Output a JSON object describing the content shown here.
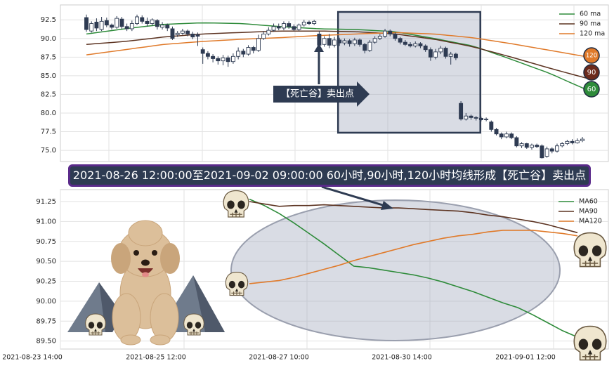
{
  "chart_data": [
    {
      "type": "candlestick",
      "panel": "top",
      "title": "",
      "ylim": [
        73.5,
        94.5
      ],
      "yticks": [
        "92.5",
        "90.0",
        "87.5",
        "85.0",
        "82.5",
        "80.0",
        "77.5",
        "75.0"
      ],
      "ytick_values": [
        92.5,
        90.0,
        87.5,
        85.0,
        82.5,
        80.0,
        77.5,
        75.0
      ],
      "grid": true,
      "legend_position": "top-right",
      "legend": [
        "60 ma",
        "90 ma",
        "120 ma"
      ],
      "colors": {
        "ma60": "#2e8b3a",
        "ma90": "#5c3321",
        "ma120": "#e07a2a",
        "candle": "#2e3b52",
        "highlight_box": "#2e3b52"
      },
      "candles": [
        {
          "o": 92.8,
          "c": 91.2,
          "h": 93.2,
          "l": 90.9
        },
        {
          "o": 91.0,
          "c": 92.0,
          "h": 92.3,
          "l": 90.8
        },
        {
          "o": 92.2,
          "c": 91.4,
          "h": 92.7,
          "l": 91.0
        },
        {
          "o": 91.2,
          "c": 92.3,
          "h": 92.9,
          "l": 91.0
        },
        {
          "o": 92.4,
          "c": 91.8,
          "h": 92.8,
          "l": 91.5
        },
        {
          "o": 91.8,
          "c": 91.5,
          "h": 92.0,
          "l": 91.2
        },
        {
          "o": 91.5,
          "c": 92.7,
          "h": 93.0,
          "l": 91.3
        },
        {
          "o": 92.6,
          "c": 91.6,
          "h": 92.9,
          "l": 91.3
        },
        {
          "o": 91.6,
          "c": 91.3,
          "h": 92.0,
          "l": 91.0
        },
        {
          "o": 91.3,
          "c": 92.0,
          "h": 92.4,
          "l": 91.0
        },
        {
          "o": 92.0,
          "c": 92.9,
          "h": 93.2,
          "l": 91.8
        },
        {
          "o": 92.8,
          "c": 92.3,
          "h": 93.1,
          "l": 92.0
        },
        {
          "o": 92.3,
          "c": 92.0,
          "h": 92.8,
          "l": 91.6
        },
        {
          "o": 92.0,
          "c": 92.5,
          "h": 92.7,
          "l": 91.7
        },
        {
          "o": 92.4,
          "c": 91.6,
          "h": 92.6,
          "l": 91.2
        },
        {
          "o": 91.5,
          "c": 91.8,
          "h": 92.2,
          "l": 91.2
        },
        {
          "o": 91.8,
          "c": 91.4,
          "h": 92.0,
          "l": 91.0
        },
        {
          "o": 91.3,
          "c": 90.0,
          "h": 91.6,
          "l": 89.8
        },
        {
          "o": 90.5,
          "c": 90.7,
          "h": 91.0,
          "l": 90.2
        },
        {
          "o": 90.7,
          "c": 91.0,
          "h": 91.3,
          "l": 90.5
        },
        {
          "o": 91.0,
          "c": 90.6,
          "h": 91.2,
          "l": 90.3
        },
        {
          "o": 90.6,
          "c": 90.2,
          "h": 90.9,
          "l": 89.9
        },
        {
          "o": 90.5,
          "c": 90.3,
          "h": 90.8,
          "l": 89.0
        },
        {
          "o": 88.5,
          "c": 88.0,
          "h": 88.8,
          "l": 86.6
        },
        {
          "o": 88.0,
          "c": 87.6,
          "h": 88.3,
          "l": 87.2
        },
        {
          "o": 87.6,
          "c": 87.3,
          "h": 87.9,
          "l": 86.8
        },
        {
          "o": 87.3,
          "c": 87.0,
          "h": 87.6,
          "l": 86.5
        },
        {
          "o": 87.0,
          "c": 87.4,
          "h": 87.8,
          "l": 86.4
        },
        {
          "o": 87.4,
          "c": 86.9,
          "h": 87.7,
          "l": 86.2
        },
        {
          "o": 86.9,
          "c": 87.6,
          "h": 88.0,
          "l": 86.6
        },
        {
          "o": 87.6,
          "c": 88.3,
          "h": 88.8,
          "l": 87.2
        },
        {
          "o": 88.3,
          "c": 87.9,
          "h": 88.6,
          "l": 87.5
        },
        {
          "o": 87.9,
          "c": 88.8,
          "h": 89.1,
          "l": 87.7
        },
        {
          "o": 88.8,
          "c": 88.4,
          "h": 89.0,
          "l": 88.0
        },
        {
          "o": 88.4,
          "c": 90.0,
          "h": 90.5,
          "l": 88.2
        },
        {
          "o": 90.0,
          "c": 90.6,
          "h": 91.0,
          "l": 89.8
        },
        {
          "o": 90.6,
          "c": 91.1,
          "h": 91.5,
          "l": 90.4
        },
        {
          "o": 91.1,
          "c": 91.6,
          "h": 92.0,
          "l": 90.9
        },
        {
          "o": 91.6,
          "c": 91.4,
          "h": 92.0,
          "l": 91.1
        },
        {
          "o": 91.4,
          "c": 92.0,
          "h": 92.3,
          "l": 91.1
        },
        {
          "o": 92.0,
          "c": 91.6,
          "h": 92.3,
          "l": 91.3
        },
        {
          "o": 91.6,
          "c": 91.2,
          "h": 91.9,
          "l": 91.0
        },
        {
          "o": 91.2,
          "c": 91.8,
          "h": 92.0,
          "l": 91.0
        },
        {
          "o": 91.8,
          "c": 92.2,
          "h": 92.5,
          "l": 91.6
        },
        {
          "o": 92.2,
          "c": 92.0,
          "h": 92.4,
          "l": 91.8
        },
        {
          "o": 92.0,
          "c": 92.3,
          "h": 92.5,
          "l": 91.8
        },
        {
          "o": 90.6,
          "c": 89.1,
          "h": 91.0,
          "l": 88.6
        },
        {
          "o": 89.2,
          "c": 90.0,
          "h": 90.3,
          "l": 88.9
        },
        {
          "o": 90.0,
          "c": 89.1,
          "h": 90.6,
          "l": 88.7
        },
        {
          "o": 89.1,
          "c": 89.8,
          "h": 90.2,
          "l": 88.8
        },
        {
          "o": 89.8,
          "c": 89.4,
          "h": 90.1,
          "l": 89.0
        },
        {
          "o": 89.4,
          "c": 89.7,
          "h": 90.0,
          "l": 89.1
        },
        {
          "o": 89.7,
          "c": 89.3,
          "h": 89.9,
          "l": 88.9
        },
        {
          "o": 89.3,
          "c": 89.8,
          "h": 90.1,
          "l": 89.0
        },
        {
          "o": 89.8,
          "c": 89.2,
          "h": 90.0,
          "l": 88.9
        },
        {
          "o": 89.2,
          "c": 88.4,
          "h": 89.4,
          "l": 88.0
        },
        {
          "o": 88.4,
          "c": 89.5,
          "h": 89.8,
          "l": 88.2
        },
        {
          "o": 89.5,
          "c": 90.0,
          "h": 90.3,
          "l": 89.3
        },
        {
          "o": 90.0,
          "c": 90.3,
          "h": 90.6,
          "l": 89.8
        },
        {
          "o": 90.3,
          "c": 91.0,
          "h": 91.3,
          "l": 90.1
        },
        {
          "o": 91.0,
          "c": 90.6,
          "h": 91.2,
          "l": 90.3
        },
        {
          "o": 90.6,
          "c": 90.0,
          "h": 90.8,
          "l": 89.7
        },
        {
          "o": 90.0,
          "c": 89.5,
          "h": 90.2,
          "l": 89.2
        },
        {
          "o": 89.5,
          "c": 89.2,
          "h": 89.8,
          "l": 89.0
        },
        {
          "o": 89.2,
          "c": 89.0,
          "h": 89.5,
          "l": 88.8
        },
        {
          "o": 89.0,
          "c": 89.3,
          "h": 89.6,
          "l": 88.8
        },
        {
          "o": 89.3,
          "c": 89.0,
          "h": 89.5,
          "l": 88.7
        },
        {
          "o": 89.0,
          "c": 88.5,
          "h": 89.2,
          "l": 88.2
        },
        {
          "o": 88.5,
          "c": 87.5,
          "h": 88.8,
          "l": 87.0
        },
        {
          "o": 87.5,
          "c": 88.2,
          "h": 88.6,
          "l": 87.2
        },
        {
          "o": 88.2,
          "c": 88.7,
          "h": 89.0,
          "l": 87.9
        },
        {
          "o": 88.7,
          "c": 87.6,
          "h": 88.9,
          "l": 87.3
        },
        {
          "o": 87.6,
          "c": 87.9,
          "h": 88.2,
          "l": 86.5
        },
        {
          "o": 87.9,
          "c": 87.4,
          "h": 88.1,
          "l": 87.1
        },
        {
          "o": 81.3,
          "c": 79.2,
          "h": 81.6,
          "l": 79.0
        },
        {
          "o": 79.2,
          "c": 79.6,
          "h": 80.0,
          "l": 79.0
        },
        {
          "o": 79.6,
          "c": 79.4,
          "h": 79.8,
          "l": 79.1
        },
        {
          "o": 79.4,
          "c": 79.3,
          "h": 79.6,
          "l": 79.0
        },
        {
          "o": 79.3,
          "c": 79.1,
          "h": 79.5,
          "l": 78.9
        },
        {
          "o": 79.1,
          "c": 79.2,
          "h": 79.4,
          "l": 78.9
        },
        {
          "o": 78.8,
          "c": 77.8,
          "h": 79.0,
          "l": 77.5
        },
        {
          "o": 77.8,
          "c": 77.2,
          "h": 78.0,
          "l": 77.0
        },
        {
          "o": 77.2,
          "c": 76.8,
          "h": 77.4,
          "l": 76.5
        },
        {
          "o": 76.8,
          "c": 77.2,
          "h": 77.5,
          "l": 76.6
        },
        {
          "o": 77.2,
          "c": 76.7,
          "h": 77.4,
          "l": 76.5
        },
        {
          "o": 76.7,
          "c": 75.6,
          "h": 76.9,
          "l": 75.4
        },
        {
          "o": 75.6,
          "c": 75.9,
          "h": 76.1,
          "l": 75.3
        },
        {
          "o": 75.9,
          "c": 75.4,
          "h": 76.0,
          "l": 75.2
        },
        {
          "o": 75.4,
          "c": 75.7,
          "h": 75.9,
          "l": 75.1
        },
        {
          "o": 75.7,
          "c": 75.5,
          "h": 75.9,
          "l": 75.3
        },
        {
          "o": 75.6,
          "c": 74.0,
          "h": 75.8,
          "l": 73.9
        },
        {
          "o": 74.2,
          "c": 75.2,
          "h": 75.5,
          "l": 74.0
        },
        {
          "o": 75.2,
          "c": 74.9,
          "h": 75.4,
          "l": 74.6
        },
        {
          "o": 74.9,
          "c": 75.6,
          "h": 75.9,
          "l": 74.7
        },
        {
          "o": 75.6,
          "c": 75.9,
          "h": 76.1,
          "l": 75.4
        },
        {
          "o": 75.9,
          "c": 76.2,
          "h": 76.4,
          "l": 75.7
        },
        {
          "o": 76.2,
          "c": 76.0,
          "h": 76.5,
          "l": 75.8
        },
        {
          "o": 76.0,
          "c": 76.3,
          "h": 76.6,
          "l": 75.9
        },
        {
          "o": 76.3,
          "c": 76.5,
          "h": 76.8,
          "l": 76.1
        }
      ],
      "ma_lines": {
        "ma60": [
          90.6,
          91.3,
          91.9,
          92.1,
          92.0,
          91.6,
          91.3,
          91.2,
          90.9,
          90.0,
          89.0,
          87.2,
          85.3,
          83.0
        ],
        "ma90": [
          89.2,
          89.6,
          90.2,
          90.6,
          90.8,
          91.0,
          91.0,
          90.9,
          90.6,
          89.9,
          88.9,
          87.5,
          86.0,
          84.6
        ],
        "ma120": [
          87.8,
          88.5,
          89.2,
          89.6,
          89.9,
          90.1,
          90.4,
          90.6,
          90.8,
          90.6,
          90.1,
          89.3,
          88.4,
          87.5
        ]
      },
      "end_markers": [
        "120",
        "90",
        "60"
      ],
      "annotation": "【死亡谷】卖出点",
      "highlight_box": {
        "from_index": 50,
        "to_index": 77
      }
    },
    {
      "type": "line",
      "panel": "bottom",
      "title": "",
      "ylim": [
        89.4,
        91.4
      ],
      "yticks": [
        "91.25",
        "91.00",
        "90.75",
        "90.50",
        "90.25",
        "90.00",
        "89.75",
        "89.50"
      ],
      "ytick_values": [
        91.25,
        91.0,
        90.75,
        90.5,
        90.25,
        90.0,
        89.75,
        89.5
      ],
      "xticks": [
        "2021-08-23 14:00",
        "2021-08-25 12:00",
        "2021-08-27 10:00",
        "2021-08-30 14:00",
        "2021-09-01 12:00"
      ],
      "grid": true,
      "legend_position": "top-right",
      "legend": [
        "MA60",
        "MA90",
        "MA120"
      ],
      "series": [
        {
          "name": "MA60",
          "color": "#2e8b3a",
          "values": [
            91.28,
            91.2,
            91.1,
            90.98,
            90.85,
            90.72,
            90.58,
            90.44,
            90.42,
            90.39,
            90.36,
            90.33,
            90.29,
            90.24,
            90.18,
            90.12,
            90.05,
            89.98,
            89.92,
            89.83,
            89.73,
            89.63,
            89.55
          ]
        },
        {
          "name": "MA90",
          "color": "#5c3321",
          "values": [
            91.25,
            91.22,
            91.19,
            91.2,
            91.2,
            91.21,
            91.2,
            91.19,
            91.18,
            91.17,
            91.17,
            91.16,
            91.15,
            91.14,
            91.13,
            91.11,
            91.08,
            91.06,
            91.03,
            91.0,
            90.96,
            90.91,
            90.86
          ]
        },
        {
          "name": "MA120",
          "color": "#e07a2a",
          "values": [
            90.22,
            90.24,
            90.26,
            90.3,
            90.35,
            90.4,
            90.45,
            90.51,
            90.56,
            90.61,
            90.66,
            90.71,
            90.75,
            90.79,
            90.82,
            90.84,
            90.87,
            90.89,
            90.89,
            90.89,
            90.87,
            90.85,
            90.82
          ]
        }
      ]
    }
  ],
  "banner_text": "2021-08-26 12:00:00至2021-09-02 09:00:00 60小时,90小时,120小时均线形成【死亡谷】卖出点"
}
